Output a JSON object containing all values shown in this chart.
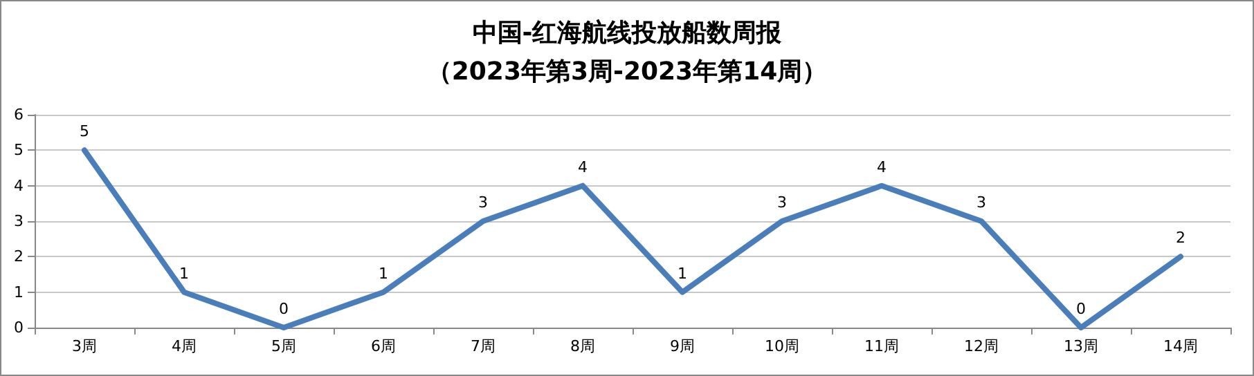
{
  "chart_data": {
    "type": "line",
    "title": "中国-红海航线投放船数周报",
    "subtitle": "（2023年第3周-2023年第14周）",
    "categories": [
      "3周",
      "4周",
      "5周",
      "6周",
      "7周",
      "8周",
      "9周",
      "10周",
      "11周",
      "12周",
      "13周",
      "14周"
    ],
    "series": [
      {
        "color": "#4a7ebb",
        "values": [
          5,
          1,
          0,
          1,
          3,
          4,
          1,
          3,
          4,
          3,
          0,
          2
        ]
      }
    ],
    "ylim": [
      0,
      6
    ],
    "yticks": [
      0,
      1,
      2,
      3,
      4,
      5,
      6
    ],
    "grid": "y",
    "marker": "none",
    "line_style": "solid",
    "data_labels": true
  }
}
